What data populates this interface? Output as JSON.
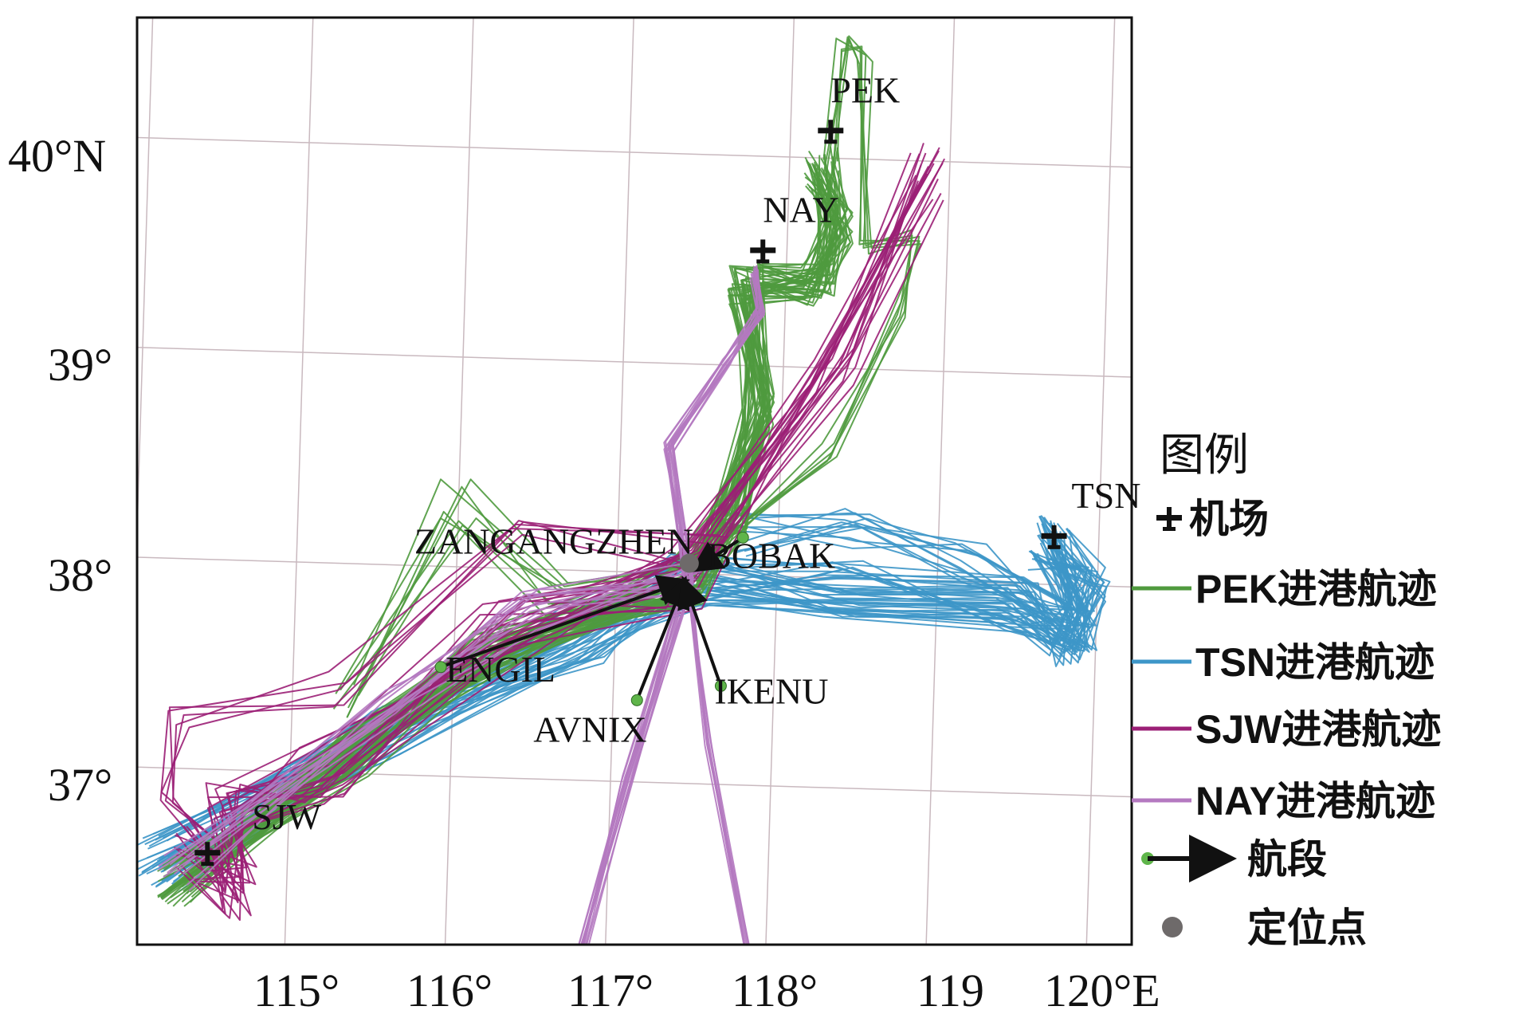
{
  "colors": {
    "pek": "#4f9a3e",
    "tsn": "#3d96c8",
    "sjw": "#9b1f76",
    "nay": "#b479c0",
    "grid": "#c9b9bf",
    "segment": "#111111",
    "fix": "#5fb54a",
    "anchor": "#6e6a6a"
  },
  "axes": {
    "lon_ticks": [
      "115°",
      "116°",
      "117°",
      "118°",
      "119",
      "120°E"
    ],
    "lat_ticks": [
      "40°N",
      "39°",
      "38°",
      "37°"
    ]
  },
  "airports": [
    {
      "code": "PEK",
      "lon": 118.25,
      "lat": 40.13
    },
    {
      "code": "NAY",
      "lon": 117.85,
      "lat": 39.55
    },
    {
      "code": "TSN",
      "lon": 119.72,
      "lat": 38.23
    },
    {
      "code": "SJW",
      "lon": 114.5,
      "lat": 36.6
    }
  ],
  "waypoints": [
    {
      "name": "ZANGANGZHEN",
      "lon": 117.45,
      "lat": 38.05
    },
    {
      "name": "BOBAK",
      "lon": 117.78,
      "lat": 38.18
    },
    {
      "name": "ENGIL",
      "lon": 115.92,
      "lat": 37.52
    },
    {
      "name": "AVNIX",
      "lon": 117.15,
      "lat": 37.39
    },
    {
      "name": "IKENU",
      "lon": 117.67,
      "lat": 37.47
    }
  ],
  "legend": {
    "title": "图例",
    "airport": "机场",
    "pek": "PEK进港航迹",
    "tsn": "TSN进港航迹",
    "sjw": "SJW进港航迹",
    "nay": "NAY进港航迹",
    "segment": "航段",
    "anchor": "定位点"
  }
}
